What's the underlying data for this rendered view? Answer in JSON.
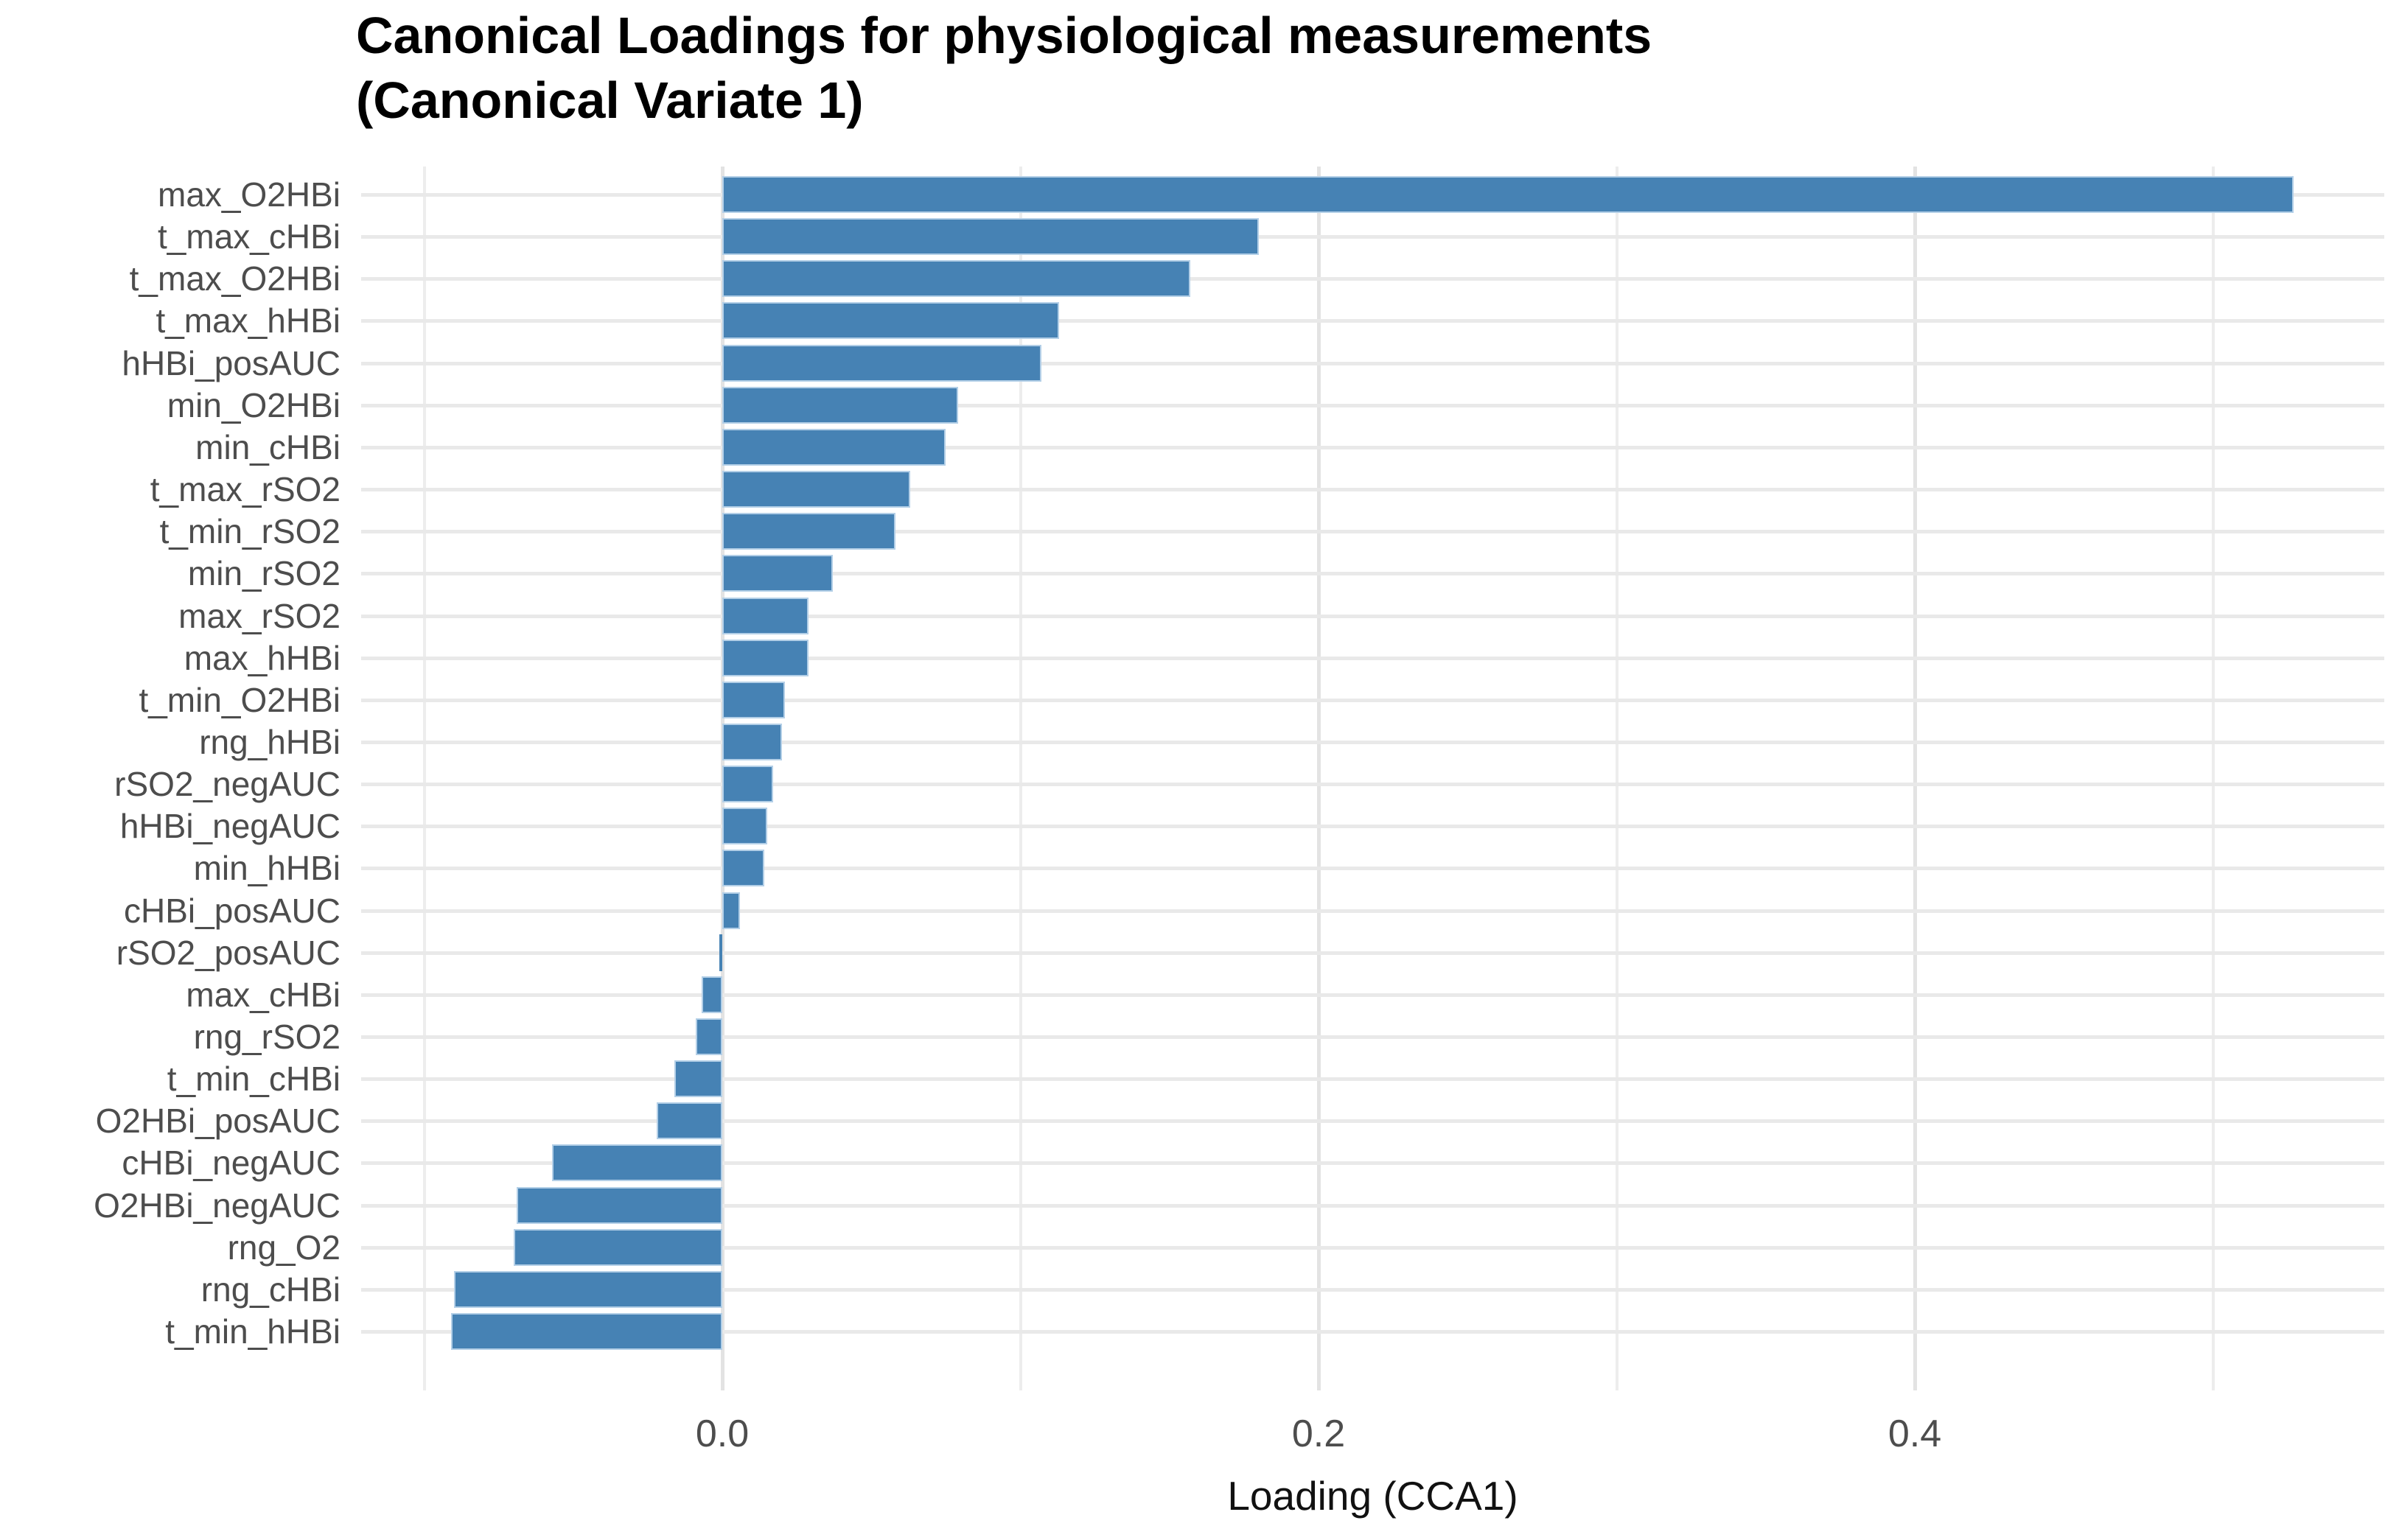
{
  "title": "Canonical Loadings for physiological measurements\n(Canonical Variate 1)",
  "colors": {
    "bar_fill": "#4682B4",
    "bar_stroke": "#b3cfe7",
    "grid_major": "#e3e3e3",
    "grid_minor": "#ededed",
    "axis_text": "#4d4d4d",
    "title_text": "#000000"
  },
  "chart_data": {
    "type": "bar",
    "orientation": "horizontal",
    "title": "Canonical Loadings for physiological measurements (Canonical Variate 1)",
    "xlabel": "Loading (CCA1)",
    "ylabel": "",
    "xlim": [
      -0.122,
      0.557
    ],
    "grid": true,
    "legend_position": "none",
    "x_axis": {
      "major_ticks": [
        0.0,
        0.2,
        0.4
      ],
      "tick_labels": [
        "0.0",
        "0.2",
        "0.4"
      ],
      "minor_ticks": [
        -0.1,
        0.1,
        0.3,
        0.5
      ]
    },
    "categories": [
      "max_O2HBi",
      "t_max_cHBi",
      "t_max_O2HBi",
      "t_max_hHBi",
      "hHBi_posAUC",
      "min_O2HBi",
      "min_cHBi",
      "t_max_rSO2",
      "t_min_rSO2",
      "min_rSO2",
      "max_rSO2",
      "max_hHBi",
      "t_min_O2HBi",
      "rng_hHBi",
      "rSO2_negAUC",
      "hHBi_negAUC",
      "min_hHBi",
      "cHBi_posAUC",
      "rSO2_posAUC",
      "max_cHBi",
      "rng_rSO2",
      "t_min_cHBi",
      "O2HBi_posAUC",
      "cHBi_negAUC",
      "O2HBi_negAUC",
      "rng_O2",
      "rng_cHBi",
      "t_min_hHBi"
    ],
    "values": [
      0.527,
      0.18,
      0.157,
      0.113,
      0.107,
      0.079,
      0.075,
      0.063,
      0.058,
      0.037,
      0.029,
      0.029,
      0.021,
      0.02,
      0.017,
      0.015,
      0.014,
      0.006,
      -0.001,
      -0.007,
      -0.009,
      -0.016,
      -0.022,
      -0.057,
      -0.069,
      -0.07,
      -0.09,
      -0.091
    ]
  }
}
